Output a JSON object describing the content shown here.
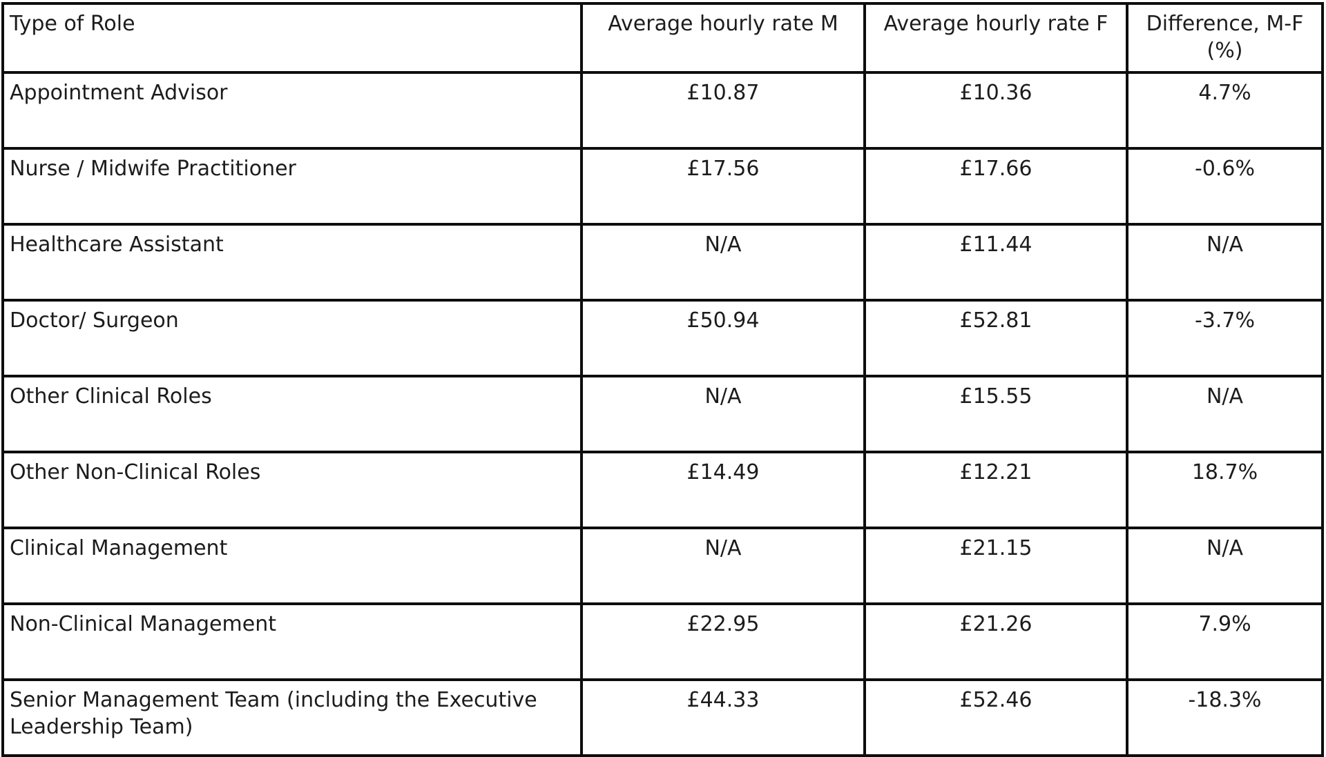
{
  "table": {
    "headers": {
      "role": "Type of Role",
      "rate_m": "Average hourly rate M",
      "rate_f": "Average hourly rate F",
      "diff": "Difference, M-F (%)"
    },
    "rows": [
      {
        "role": "Appointment Advisor",
        "rate_m": "£10.87",
        "rate_f": "£10.36",
        "diff": "4.7%"
      },
      {
        "role": "Nurse / Midwife Practitioner",
        "rate_m": "£17.56",
        "rate_f": "£17.66",
        "diff": "-0.6%"
      },
      {
        "role": "Healthcare Assistant",
        "rate_m": "N/A",
        "rate_f": "£11.44",
        "diff": "N/A"
      },
      {
        "role": "Doctor/ Surgeon",
        "rate_m": "£50.94",
        "rate_f": "£52.81",
        "diff": "-3.7%"
      },
      {
        "role": "Other Clinical Roles",
        "rate_m": "N/A",
        "rate_f": "£15.55",
        "diff": "N/A"
      },
      {
        "role": "Other Non-Clinical Roles",
        "rate_m": "£14.49",
        "rate_f": "£12.21",
        "diff": "18.7%"
      },
      {
        "role": "Clinical Management",
        "rate_m": "N/A",
        "rate_f": "£21.15",
        "diff": "N/A"
      },
      {
        "role": "Non-Clinical Management",
        "rate_m": "£22.95",
        "rate_f": "£21.26",
        "diff": "7.9%"
      },
      {
        "role": "Senior Management Team (including the Executive Leadership Team)",
        "rate_m": "£44.33",
        "rate_f": "£52.46",
        "diff": "-18.3%"
      }
    ]
  },
  "colors": {
    "border": "#0d0d0d",
    "text": "#1c1c1c",
    "background": "#ffffff"
  }
}
